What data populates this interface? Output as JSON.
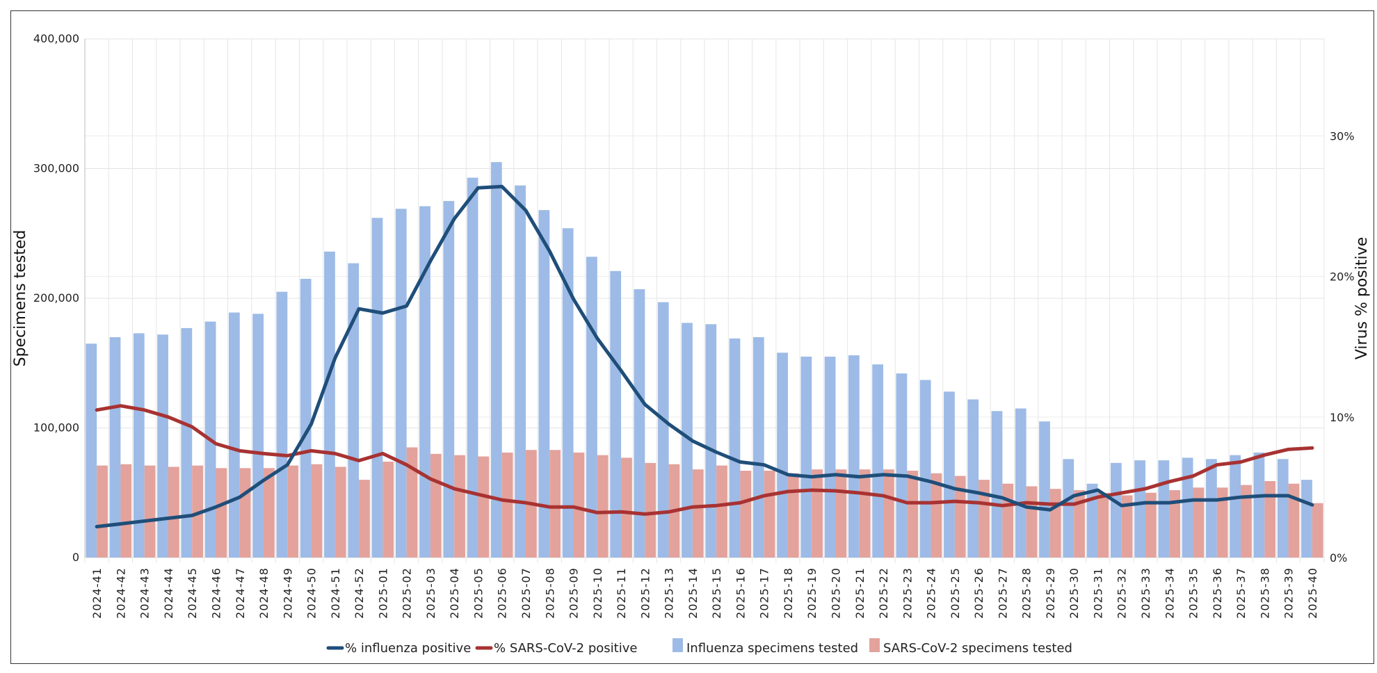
{
  "chart_data": {
    "type": "bar+line",
    "title": "",
    "ylabel": "Specimens tested",
    "y2label": "Virus % positive",
    "ylim": [
      0,
      400000
    ],
    "y2lim": [
      0,
      36.9
    ],
    "yticks": [
      0,
      100000,
      200000,
      300000,
      400000
    ],
    "ytick_labels": [
      "0",
      "100,000",
      "200,000",
      "300,000",
      "400,000"
    ],
    "y2ticks": [
      0,
      10,
      20,
      30
    ],
    "y2tick_labels": [
      "0%",
      "10%",
      "20%",
      "30%"
    ],
    "grid": true,
    "legend_position": "bottom",
    "categories": [
      "2024-41",
      "2024-42",
      "2024-43",
      "2024-44",
      "2024-45",
      "2024-46",
      "2024-47",
      "2024-48",
      "2024-49",
      "2024-50",
      "2024-51",
      "2024-52",
      "2025-01",
      "2025-02",
      "2025-03",
      "2025-04",
      "2025-05",
      "2025-06",
      "2025-07",
      "2025-08",
      "2025-09",
      "2025-10",
      "2025-11",
      "2025-12",
      "2025-13",
      "2025-14",
      "2025-15",
      "2025-16",
      "2025-17",
      "2025-18",
      "2025-19",
      "2025-20",
      "2025-21",
      "2025-22",
      "2025-23",
      "2025-24",
      "2025-25",
      "2025-26",
      "2025-27",
      "2025-28",
      "2025-29",
      "2025-30",
      "2025-31",
      "2025-32",
      "2025-33",
      "2025-34",
      "2025-35",
      "2025-36",
      "2025-37",
      "2025-38",
      "2025-39",
      "2025-40"
    ],
    "series": [
      {
        "name": "% influenza positive",
        "type": "line",
        "axis": "right",
        "color": "#1f4e79",
        "values": [
          2.2,
          2.4,
          2.6,
          2.8,
          3.0,
          3.6,
          4.3,
          5.5,
          6.6,
          9.5,
          14.2,
          17.7,
          17.4,
          17.9,
          21.1,
          24.1,
          26.3,
          26.4,
          24.7,
          21.8,
          18.4,
          15.6,
          13.3,
          10.9,
          9.5,
          8.3,
          7.5,
          6.8,
          6.6,
          5.9,
          5.75,
          5.9,
          5.75,
          5.9,
          5.8,
          5.4,
          4.9,
          4.6,
          4.25,
          3.6,
          3.4,
          4.4,
          4.8,
          3.7,
          3.9,
          3.9,
          4.1,
          4.1,
          4.3,
          4.4,
          4.4,
          3.75
        ]
      },
      {
        "name": "% SARS-CoV-2 positive",
        "type": "line",
        "axis": "right",
        "color": "#a83232",
        "values": [
          10.5,
          10.8,
          10.5,
          10.0,
          9.3,
          8.1,
          7.6,
          7.4,
          7.25,
          7.6,
          7.4,
          6.9,
          7.4,
          6.6,
          5.6,
          4.9,
          4.5,
          4.1,
          3.9,
          3.6,
          3.6,
          3.2,
          3.25,
          3.1,
          3.25,
          3.6,
          3.7,
          3.9,
          4.4,
          4.7,
          4.8,
          4.75,
          4.6,
          4.4,
          3.9,
          3.9,
          4.0,
          3.9,
          3.7,
          3.9,
          3.8,
          3.8,
          4.3,
          4.6,
          4.9,
          5.4,
          5.8,
          6.6,
          6.8,
          7.3,
          7.7,
          7.8
        ]
      },
      {
        "name": "Influenza specimens tested",
        "type": "bar",
        "axis": "left",
        "color": "#9dbbe6",
        "values": [
          165000,
          170000,
          173000,
          172000,
          177000,
          182000,
          189000,
          188000,
          205000,
          215000,
          236000,
          227000,
          262000,
          269000,
          271000,
          275000,
          293000,
          305000,
          287000,
          268000,
          254000,
          232000,
          221000,
          207000,
          197000,
          181000,
          180000,
          169000,
          170000,
          158000,
          155000,
          155000,
          156000,
          149000,
          142000,
          137000,
          128000,
          122000,
          113000,
          115000,
          105000,
          76000,
          57000,
          73000,
          75000,
          75000,
          77000,
          76000,
          79000,
          81000,
          76000,
          60000
        ]
      },
      {
        "name": "SARS-CoV-2 specimens tested",
        "type": "bar",
        "axis": "left",
        "color": "#e3a29c",
        "values": [
          71000,
          72000,
          71000,
          70000,
          71000,
          69000,
          69000,
          69000,
          71000,
          72000,
          70000,
          60000,
          74000,
          85000,
          80000,
          79000,
          78000,
          81000,
          83000,
          83000,
          81000,
          79000,
          77000,
          73000,
          72000,
          68000,
          71000,
          67000,
          67000,
          65000,
          68000,
          68000,
          68000,
          68000,
          67000,
          65000,
          63000,
          60000,
          57000,
          55000,
          53000,
          52000,
          50000,
          48000,
          50000,
          52000,
          54000,
          54000,
          56000,
          59000,
          57000,
          42000
        ]
      }
    ]
  }
}
